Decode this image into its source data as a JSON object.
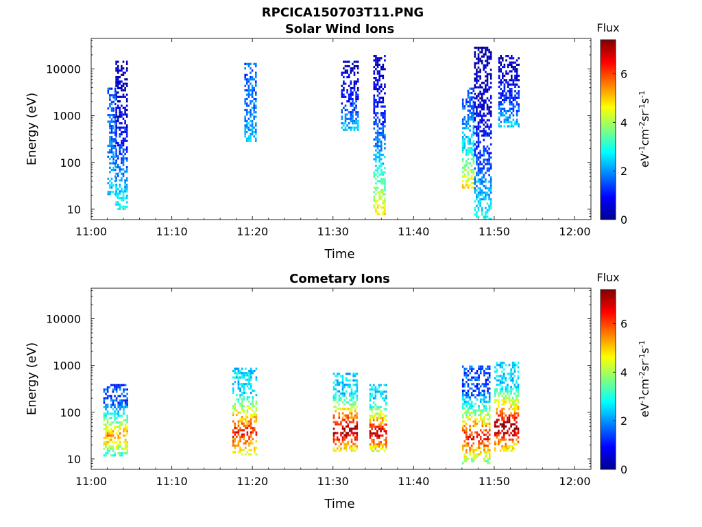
{
  "figure": {
    "title": "RPCICA150703T11.PNG"
  },
  "chart_data": [
    {
      "type": "heatmap",
      "title": "Solar Wind Ions",
      "xlabel": "Time",
      "ylabel": "Energy (eV)",
      "x_ticks": [
        "11:00",
        "11:10",
        "11:20",
        "11:30",
        "11:40",
        "11:50",
        "12:00"
      ],
      "xlim": [
        "11:00",
        "12:02"
      ],
      "y_scale": "log",
      "y_ticks": [
        "10",
        "100",
        "1000",
        "10000"
      ],
      "ylim": [
        6,
        45000
      ],
      "colorbar": {
        "title": "Flux",
        "label": "eV-1cm-2sr-1s-1",
        "range": [
          0,
          7.4
        ],
        "ticks": [
          "0",
          "2",
          "4",
          "6"
        ],
        "colormap": "jet"
      },
      "bursts": [
        {
          "x": [
            3.0,
            4.5
          ],
          "y": [
            10,
            15000
          ],
          "flux": [
            0.3,
            3.0
          ]
        },
        {
          "x": [
            2.0,
            3.0
          ],
          "y": [
            20,
            4000
          ],
          "flux": [
            1.5,
            2.5
          ]
        },
        {
          "x": [
            19.0,
            20.5
          ],
          "y": [
            300,
            15000
          ],
          "flux": [
            1.5,
            2.5
          ]
        },
        {
          "x": [
            31.0,
            33.0
          ],
          "y": [
            500,
            15000
          ],
          "flux": [
            0.5,
            2.5
          ]
        },
        {
          "x": [
            35.0,
            36.5
          ],
          "y": [
            8,
            20000
          ],
          "flux": [
            0.5,
            5.0
          ]
        },
        {
          "x": [
            46.0,
            47.5
          ],
          "y": [
            30,
            4000
          ],
          "flux": [
            1.5,
            5.0
          ]
        },
        {
          "x": [
            47.5,
            49.5
          ],
          "y": [
            6,
            30000
          ],
          "flux": [
            0.3,
            3.0
          ]
        },
        {
          "x": [
            50.5,
            53.0
          ],
          "y": [
            600,
            20000
          ],
          "flux": [
            0.5,
            2.5
          ]
        }
      ]
    },
    {
      "type": "heatmap",
      "title": "Cometary Ions",
      "xlabel": "Time",
      "ylabel": "Energy (eV)",
      "x_ticks": [
        "11:00",
        "11:10",
        "11:20",
        "11:30",
        "11:40",
        "11:50",
        "12:00"
      ],
      "xlim": [
        "11:00",
        "12:02"
      ],
      "y_scale": "log",
      "y_ticks": [
        "10",
        "100",
        "1000",
        "10000"
      ],
      "ylim": [
        6,
        45000
      ],
      "colorbar": {
        "title": "Flux",
        "label": "eV-1cm-2sr-1s-1",
        "range": [
          0,
          7.4
        ],
        "ticks": [
          "0",
          "2",
          "4",
          "6"
        ],
        "colormap": "jet"
      },
      "bursts": [
        {
          "x": [
            1.5,
            4.5
          ],
          "y": [
            12,
            400
          ],
          "flux": [
            1.5,
            5.5
          ]
        },
        {
          "x": [
            17.5,
            20.5
          ],
          "y": [
            12,
            900
          ],
          "flux": [
            2.5,
            6.5
          ]
        },
        {
          "x": [
            30.0,
            33.0
          ],
          "y": [
            15,
            700
          ],
          "flux": [
            2.5,
            7.4
          ]
        },
        {
          "x": [
            34.5,
            36.5
          ],
          "y": [
            15,
            400
          ],
          "flux": [
            2.5,
            7.0
          ]
        },
        {
          "x": [
            46.0,
            49.5
          ],
          "y": [
            8,
            1000
          ],
          "flux": [
            1.5,
            6.5
          ]
        },
        {
          "x": [
            50.0,
            53.0
          ],
          "y": [
            15,
            1200
          ],
          "flux": [
            2.5,
            7.4
          ]
        }
      ]
    }
  ]
}
